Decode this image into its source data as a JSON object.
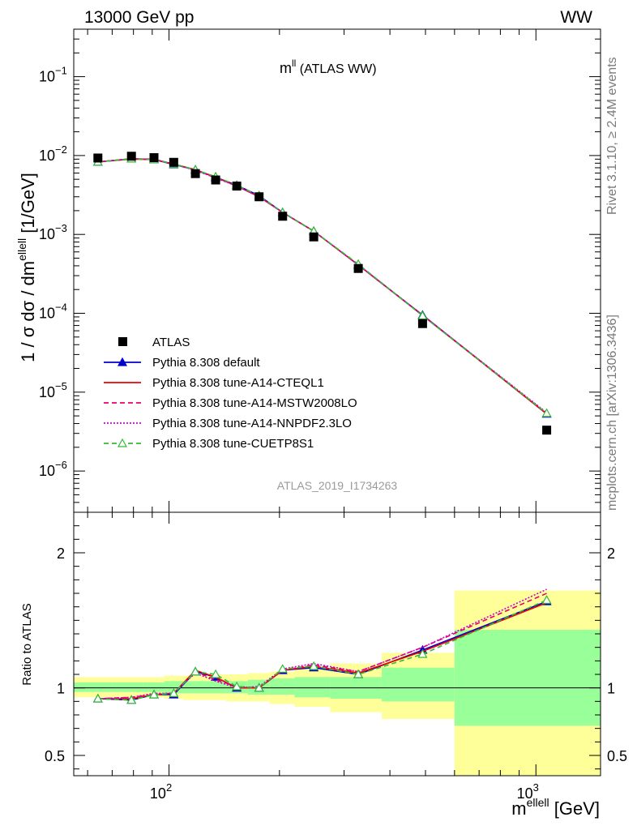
{
  "header": {
    "left": "13000 GeV pp",
    "right": "WW"
  },
  "side": {
    "top": "Rivet 3.1.10, ≥ 2.4M events",
    "bottom": "mcplots.cern.ch [arXiv:1306.3436]"
  },
  "chart_data": [
    {
      "type": "line",
      "title_main": "m",
      "title_sup": "ll",
      "title_rest": " (ATLAS WW)",
      "ylabel": "1 / σ  dσ / dm",
      "ylabel_sup": "ellell",
      "ylabel_unit": " [1/GeV]",
      "watermark": "ATLAS_2019_I1734263",
      "xscale": "log",
      "yscale": "log",
      "xlim": [
        55,
        1500
      ],
      "ylim": [
        3e-07,
        0.4
      ],
      "ytick_labels": [
        "10−6",
        "10−5",
        "10−4",
        "10−3",
        "10−2",
        "10−1"
      ],
      "legend_position": "bottom-left",
      "x": [
        64,
        79,
        91,
        103,
        118,
        134,
        153,
        176,
        204,
        248,
        328,
        491,
        1070
      ],
      "series": [
        {
          "name": "ATLAS",
          "color": "#000000",
          "marker": "square",
          "values": [
            0.0093,
            0.0098,
            0.0094,
            0.0082,
            0.0059,
            0.0049,
            0.0041,
            0.003,
            0.0017,
            0.00093,
            0.00037,
            7.4e-05,
            3.3e-06
          ]
        },
        {
          "name": "Pythia 8.308 default",
          "color": "#0000cc",
          "marker": "triangle",
          "style": "solid",
          "values": [
            0.0083,
            0.0091,
            0.0089,
            0.0077,
            0.0066,
            0.0053,
            0.0042,
            0.0031,
            0.0019,
            0.0011,
            0.00041,
            9.5e-05,
            5.3e-06
          ]
        },
        {
          "name": "Pythia 8.308 tune-A14-CTEQL1",
          "color": "#ee0000",
          "style": "solid",
          "values": [
            0.0083,
            0.009,
            0.0089,
            0.0078,
            0.0066,
            0.0053,
            0.0041,
            0.003,
            0.0019,
            0.0011,
            0.00041,
            9.4e-05,
            5.3e-06
          ]
        },
        {
          "name": "Pythia 8.308 tune-A14-MSTW2008LO",
          "color": "#e8006e",
          "style": "dashed",
          "values": [
            0.0083,
            0.0091,
            0.009,
            0.0078,
            0.0066,
            0.0052,
            0.0042,
            0.003,
            0.0019,
            0.0011,
            0.00041,
            9.4e-05,
            5.4e-06
          ]
        },
        {
          "name": "Pythia 8.308 tune-A14-NNPDF2.3LO",
          "color": "#cc00cc",
          "style": "dotted",
          "values": [
            0.0083,
            0.0091,
            0.009,
            0.0078,
            0.0065,
            0.0052,
            0.0041,
            0.003,
            0.0019,
            0.0011,
            0.00041,
            9.4e-05,
            5.5e-06
          ]
        },
        {
          "name": "Pythia 8.308 tune-CUETP8S1",
          "color": "#33bb33",
          "marker": "open-triangle",
          "style": "dashed",
          "values": [
            0.0083,
            0.0091,
            0.0089,
            0.0078,
            0.0066,
            0.0054,
            0.0042,
            0.0031,
            0.0019,
            0.0011,
            0.00042,
            9.3e-05,
            5.4e-06
          ]
        }
      ]
    },
    {
      "type": "line",
      "ylabel": "Ratio to ATLAS",
      "xlabel": "m",
      "xlabel_sup": "ellell",
      "xlabel_unit": " [GeV]",
      "xscale": "log",
      "xlim": [
        55,
        1500
      ],
      "ylim": [
        0.35,
        2.3
      ],
      "ytick_labels": [
        "0.5",
        "1",
        "2"
      ],
      "xtick_labels": [
        "10",
        "2",
        "10",
        "3"
      ],
      "bins": [
        [
          55,
          70
        ],
        [
          70,
          85
        ],
        [
          85,
          97
        ],
        [
          97,
          109
        ],
        [
          109,
          126
        ],
        [
          126,
          143
        ],
        [
          143,
          164
        ],
        [
          164,
          188
        ],
        [
          188,
          220
        ],
        [
          220,
          275
        ],
        [
          275,
          380
        ],
        [
          380,
          600
        ],
        [
          600,
          1500
        ]
      ],
      "uncertainty_green": [
        [
          0.97,
          1.04
        ],
        [
          0.97,
          1.04
        ],
        [
          0.97,
          1.04
        ],
        [
          0.96,
          1.05
        ],
        [
          0.96,
          1.05
        ],
        [
          0.96,
          1.05
        ],
        [
          0.96,
          1.05
        ],
        [
          0.95,
          1.06
        ],
        [
          0.95,
          1.07
        ],
        [
          0.93,
          1.08
        ],
        [
          0.92,
          1.08
        ],
        [
          0.9,
          1.15
        ],
        [
          0.72,
          1.43
        ]
      ],
      "uncertainty_yellow": [
        [
          0.93,
          1.08
        ],
        [
          0.93,
          1.08
        ],
        [
          0.93,
          1.08
        ],
        [
          0.92,
          1.09
        ],
        [
          0.91,
          1.09
        ],
        [
          0.91,
          1.1
        ],
        [
          0.9,
          1.1
        ],
        [
          0.9,
          1.11
        ],
        [
          0.88,
          1.12
        ],
        [
          0.86,
          1.15
        ],
        [
          0.82,
          1.18
        ],
        [
          0.77,
          1.26
        ],
        [
          0.35,
          1.72
        ]
      ],
      "x": [
        64,
        79,
        91,
        103,
        118,
        134,
        153,
        176,
        204,
        248,
        328,
        491,
        1070
      ],
      "series": [
        {
          "name": "Pythia 8.308 default",
          "color": "#0000cc",
          "marker": "triangle",
          "style": "solid",
          "values": [
            0.92,
            0.91,
            0.95,
            0.95,
            1.12,
            1.08,
            1.0,
            1.0,
            1.13,
            1.15,
            1.1,
            1.28,
            1.64
          ]
        },
        {
          "name": "Pythia 8.308 tune-A14-CTEQL1",
          "color": "#ee0000",
          "style": "solid",
          "values": [
            0.92,
            0.92,
            0.95,
            0.96,
            1.13,
            1.08,
            1.0,
            1.0,
            1.13,
            1.16,
            1.11,
            1.27,
            1.63
          ]
        },
        {
          "name": "Pythia 8.308 tune-A14-MSTW2008LO",
          "color": "#e8006e",
          "style": "dashed",
          "values": [
            0.92,
            0.93,
            0.95,
            0.96,
            1.12,
            1.06,
            1.01,
            1.0,
            1.13,
            1.17,
            1.12,
            1.3,
            1.7
          ]
        },
        {
          "name": "Pythia 8.308 tune-A14-NNPDF2.3LO",
          "color": "#cc00cc",
          "style": "dotted",
          "values": [
            0.92,
            0.93,
            0.96,
            0.96,
            1.11,
            1.05,
            1.0,
            1.01,
            1.14,
            1.18,
            1.12,
            1.3,
            1.73
          ]
        },
        {
          "name": "Pythia 8.308 tune-CUETP8S1",
          "color": "#33bb33",
          "marker": "open-triangle",
          "style": "dashed",
          "values": [
            0.92,
            0.91,
            0.95,
            0.96,
            1.12,
            1.1,
            1.01,
            1.0,
            1.14,
            1.16,
            1.1,
            1.25,
            1.65
          ]
        }
      ]
    }
  ]
}
